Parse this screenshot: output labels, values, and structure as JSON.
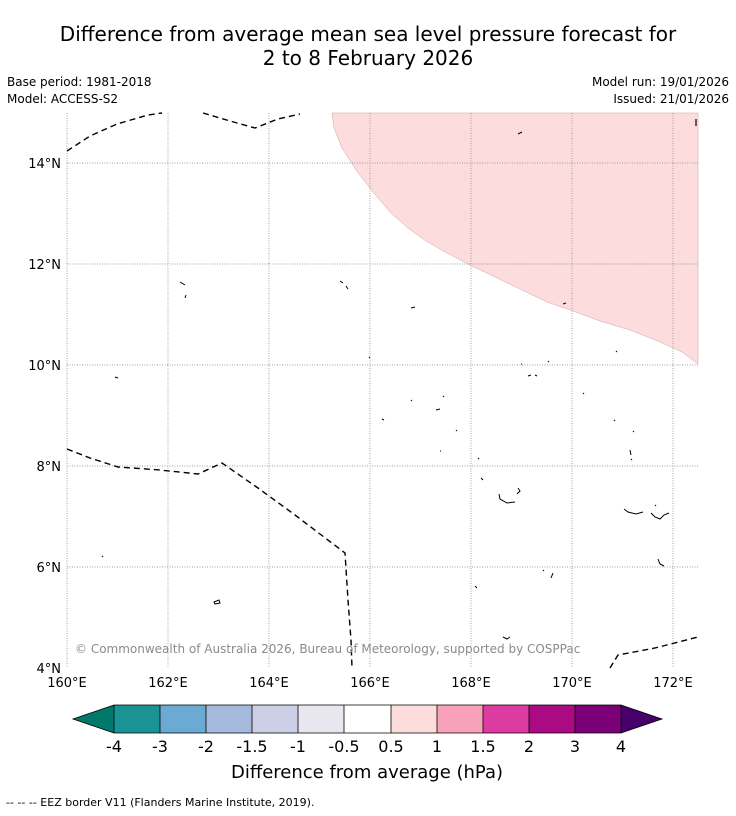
{
  "title": {
    "line1": "Difference from average mean sea level pressure forecast for",
    "line2": "2 to 8 February 2026"
  },
  "meta": {
    "base_period": "Base period: 1981-2018",
    "model": "Model: ACCESS-S2",
    "model_run": "Model run: 19/01/2026",
    "issued": "Issued: 21/01/2026"
  },
  "map": {
    "lon_labels": [
      "160°E",
      "162°E",
      "164°E",
      "166°E",
      "168°E",
      "170°E",
      "172°E"
    ],
    "lat_labels": [
      "14°N",
      "12°N",
      "10°N",
      "8°N",
      "6°N",
      "4°N"
    ],
    "copyright": "© Commonwealth of Australia 2026, Bureau of Meteorology, supported by COSPPac",
    "anomaly_fill_color": "#fcdcdc",
    "eez_line_color": "#000000"
  },
  "colorbar": {
    "tick_labels": [
      "-4",
      "-3",
      "-2",
      "-1.5",
      "-1",
      "-0.5",
      "0.5",
      "1",
      "1.5",
      "2",
      "3",
      "4"
    ],
    "colors": [
      "#00786a",
      "#1b9294",
      "#6aaad3",
      "#a5b9dc",
      "#cccfe6",
      "#e8e6ee",
      "#ffffff",
      "#fddcdc",
      "#f9a1bb",
      "#dc3ba2",
      "#aa0a84",
      "#7b0078",
      "#47006a"
    ],
    "label": "Difference from average (hPa)"
  },
  "legend": {
    "eez": "--  --  -- EEZ border V11 (Flanders Marine Institute, 2019)."
  }
}
